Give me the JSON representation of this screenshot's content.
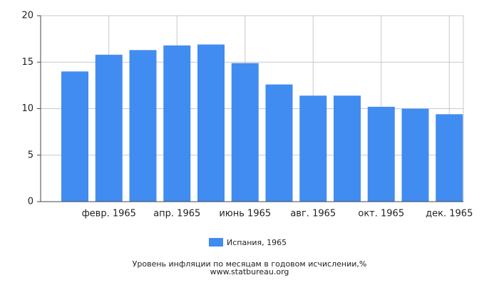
{
  "chart_data": {
    "type": "bar",
    "categories": [
      null,
      "февр. 1965",
      null,
      "апр. 1965",
      null,
      "июнь 1965",
      null,
      "авг. 1965",
      null,
      "окт. 1965",
      null,
      "дек. 1965"
    ],
    "series": [
      {
        "name": "Испания, 1965",
        "color": "#418cf0",
        "values": [
          14.0,
          15.8,
          16.3,
          16.8,
          16.9,
          14.9,
          12.6,
          11.4,
          11.4,
          10.2,
          10.0,
          9.4
        ]
      }
    ],
    "ylim": [
      0,
      20
    ],
    "yticks": [
      0,
      5,
      10,
      15,
      20
    ],
    "grid": true,
    "legend": "bottom",
    "footer": [
      "Уровень инфляции по месяцам в годовом исчислении,%",
      "www.statbureau.org"
    ]
  }
}
